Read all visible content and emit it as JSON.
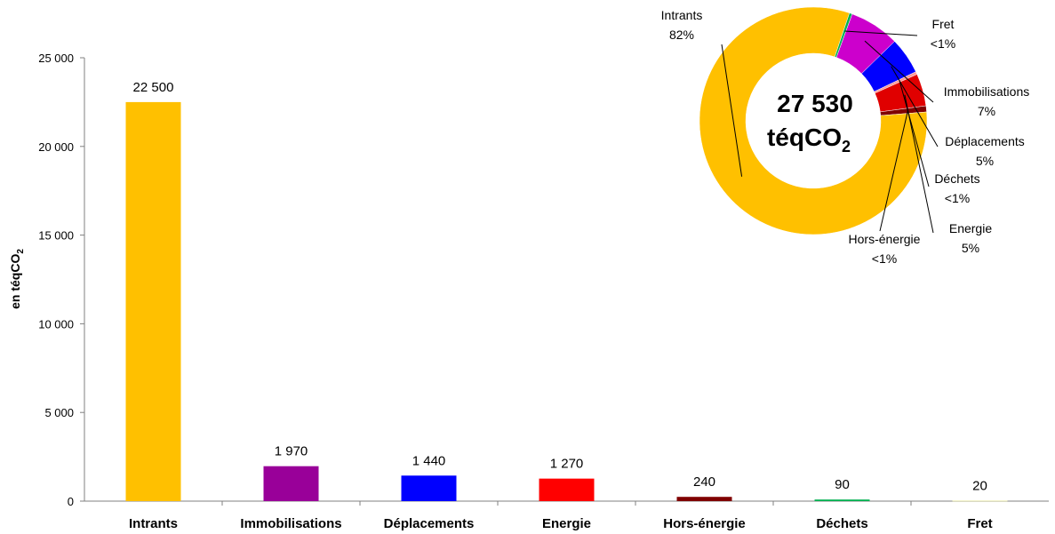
{
  "chart_data": [
    {
      "type": "bar",
      "ylabel": "en téqCO",
      "ylabel_subscript": "2",
      "ylim": [
        0,
        25000
      ],
      "yticks": [
        0,
        5000,
        10000,
        15000,
        20000,
        25000
      ],
      "ytick_labels": [
        "0",
        "5 000",
        "10 000",
        "15 000",
        "20 000",
        "25 000"
      ],
      "categories": [
        "Intrants",
        "Immobilisations",
        "Déplacements",
        "Energie",
        "Hors-énergie",
        "Déchets",
        "Fret"
      ],
      "values": [
        22500,
        1970,
        1440,
        1270,
        240,
        90,
        20
      ],
      "value_labels": [
        "22 500",
        "1 970",
        "1 440",
        "1 270",
        "240",
        "90",
        "20"
      ],
      "colors": [
        "#FFC000",
        "#990099",
        "#0000FF",
        "#FF0000",
        "#800000",
        "#00B050",
        "#FFFF99"
      ],
      "grid": false
    },
    {
      "type": "pie",
      "variant": "donut",
      "center_total": "27 530",
      "center_unit": "téqCO",
      "center_unit_subscript": "2",
      "slices": [
        {
          "label": "Intrants",
          "pct_label": "82%",
          "value": 22500,
          "color": "#FFC000"
        },
        {
          "label": "Immobilisations",
          "pct_label": "7%",
          "value": 1970,
          "color": "#CC00CC"
        },
        {
          "label": "Déplacements",
          "pct_label": "5%",
          "value": 1440,
          "color": "#0000FF"
        },
        {
          "label": "Déchets",
          "pct_label": "<1%",
          "value": 90,
          "color": "#FF9999"
        },
        {
          "label": "Energie",
          "pct_label": "5%",
          "value": 1270,
          "color": "#E00000"
        },
        {
          "label": "Hors-énergie",
          "pct_label": "<1%",
          "value": 240,
          "color": "#800000"
        },
        {
          "label": "Fret",
          "pct_label": "<1%",
          "value": 20,
          "color": "#00B050"
        }
      ]
    }
  ]
}
